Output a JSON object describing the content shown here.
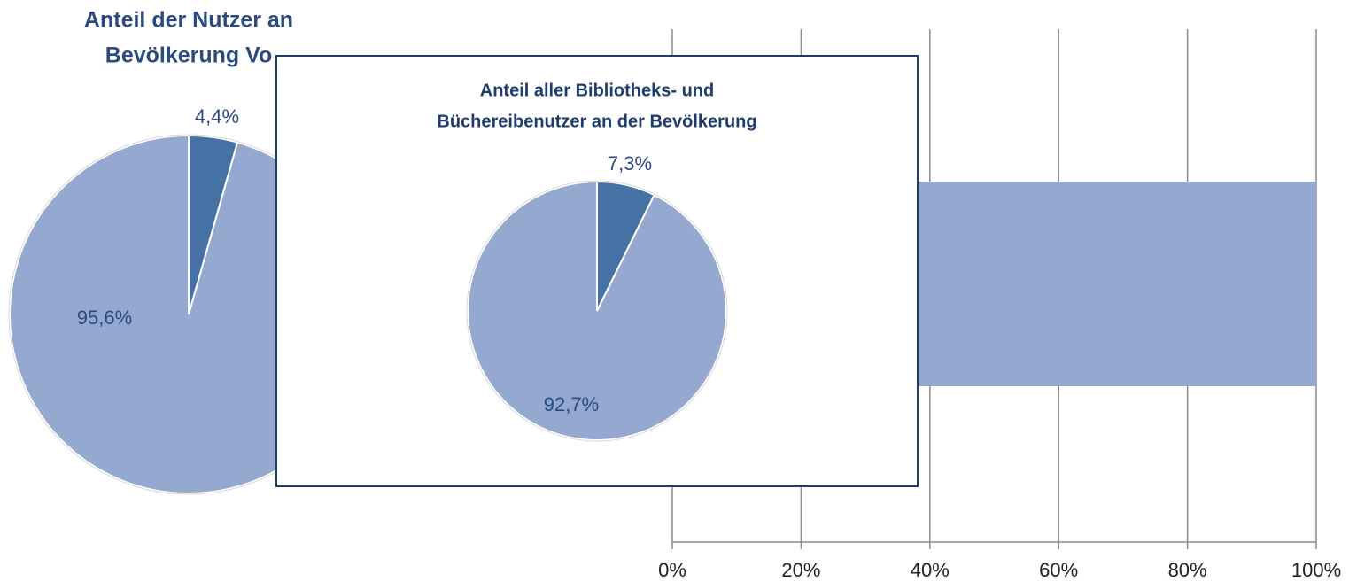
{
  "chart_data": [
    {
      "type": "pie",
      "title": [
        "Anteil der Nutzer an",
        "Bevölkerung Vo"
      ],
      "values": [
        4.4,
        95.6
      ],
      "value_labels": [
        "4,4%",
        "95,6%"
      ],
      "colors": [
        "#4671a5",
        "#95a9d0"
      ]
    },
    {
      "type": "bar",
      "orientation": "horizontal",
      "categories": [
        null
      ],
      "values": [
        100
      ],
      "color": "#95a9d0",
      "xlim": [
        0,
        100
      ],
      "xticks": [
        {
          "value": 0,
          "label": "0%"
        },
        {
          "value": 20,
          "label": "20%"
        },
        {
          "value": 40,
          "label": "40%"
        },
        {
          "value": 60,
          "label": "60%"
        },
        {
          "value": 80,
          "label": "80%"
        },
        {
          "value": 100,
          "label": "100%"
        }
      ],
      "grid": true
    },
    {
      "type": "pie",
      "title": [
        "Anteil aller Bibliotheks- und",
        "Büchereibenutzer an der Bevölkerung"
      ],
      "values": [
        7.3,
        92.7
      ],
      "value_labels": [
        "7,3%",
        "92,7%"
      ],
      "colors": [
        "#4671a5",
        "#95a9d0"
      ]
    }
  ]
}
